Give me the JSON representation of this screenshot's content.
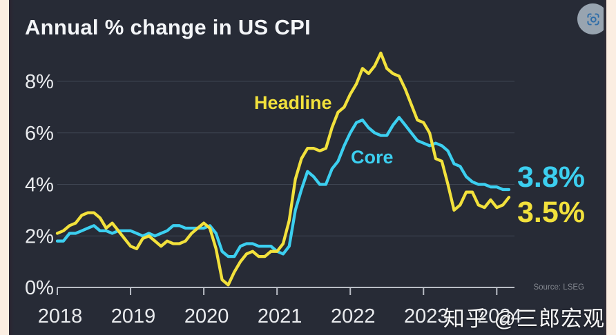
{
  "header": {
    "title": "Annual % change in US CPI"
  },
  "toolbar": {
    "scan_button": "scan-camera-icon"
  },
  "watermark": {
    "text": "知乎 @三郎宏观"
  },
  "colors": {
    "background": "#272B36",
    "edge_border": "#FBEEE2",
    "headline_line": "#F2E13C",
    "core_line": "#3CCFF0",
    "gridline": "#3E4452",
    "axis": "#B9BDC5",
    "tick_label": "#E9EBEE",
    "source_text": "#83878F"
  },
  "chart_data": {
    "type": "line",
    "title": "Annual % change in US CPI",
    "source": "Source: LSEG",
    "grid": "horizontal",
    "legend_position": "inline-labels",
    "x_start": "2018-01",
    "x_end": "2024-03",
    "frequency": "monthly",
    "x_tick_labels": [
      "2018",
      "2019",
      "2020",
      "2021",
      "2022",
      "2023",
      "2024"
    ],
    "y_tick_labels": [
      "0%",
      "2%",
      "4%",
      "6%",
      "8%"
    ],
    "y_tick_values": [
      0,
      2,
      4,
      6,
      8
    ],
    "ylim": [
      0,
      9.3
    ],
    "series": [
      {
        "name": "Headline",
        "color": "#F2E13C",
        "end_label": "3.5%",
        "values": [
          2.1,
          2.2,
          2.4,
          2.5,
          2.8,
          2.9,
          2.9,
          2.7,
          2.3,
          2.5,
          2.2,
          1.9,
          1.6,
          1.5,
          1.9,
          2.0,
          1.8,
          1.6,
          1.8,
          1.7,
          1.7,
          1.8,
          2.1,
          2.3,
          2.5,
          2.3,
          1.5,
          0.3,
          0.1,
          0.6,
          1.0,
          1.3,
          1.4,
          1.2,
          1.2,
          1.4,
          1.4,
          1.7,
          2.6,
          4.2,
          5.0,
          5.4,
          5.4,
          5.3,
          5.4,
          6.2,
          6.8,
          7.0,
          7.5,
          7.9,
          8.5,
          8.3,
          8.6,
          9.1,
          8.5,
          8.3,
          8.2,
          7.7,
          7.1,
          6.5,
          6.4,
          6.0,
          5.0,
          4.9,
          4.0,
          3.0,
          3.2,
          3.7,
          3.7,
          3.2,
          3.1,
          3.4,
          3.1,
          3.2,
          3.5
        ]
      },
      {
        "name": "Core",
        "color": "#3CCFF0",
        "end_label": "3.8%",
        "values": [
          1.8,
          1.8,
          2.1,
          2.1,
          2.2,
          2.3,
          2.4,
          2.2,
          2.2,
          2.1,
          2.2,
          2.2,
          2.2,
          2.1,
          2.0,
          2.1,
          2.0,
          2.1,
          2.2,
          2.4,
          2.4,
          2.3,
          2.3,
          2.3,
          2.3,
          2.4,
          2.1,
          1.4,
          1.2,
          1.2,
          1.6,
          1.7,
          1.7,
          1.6,
          1.6,
          1.6,
          1.4,
          1.3,
          1.6,
          3.0,
          3.8,
          4.5,
          4.3,
          4.0,
          4.0,
          4.6,
          4.9,
          5.5,
          6.0,
          6.4,
          6.5,
          6.2,
          6.0,
          5.9,
          5.9,
          6.3,
          6.6,
          6.3,
          6.0,
          5.7,
          5.6,
          5.5,
          5.6,
          5.5,
          5.3,
          4.8,
          4.7,
          4.3,
          4.1,
          4.0,
          4.0,
          3.9,
          3.9,
          3.8,
          3.8
        ]
      }
    ]
  }
}
